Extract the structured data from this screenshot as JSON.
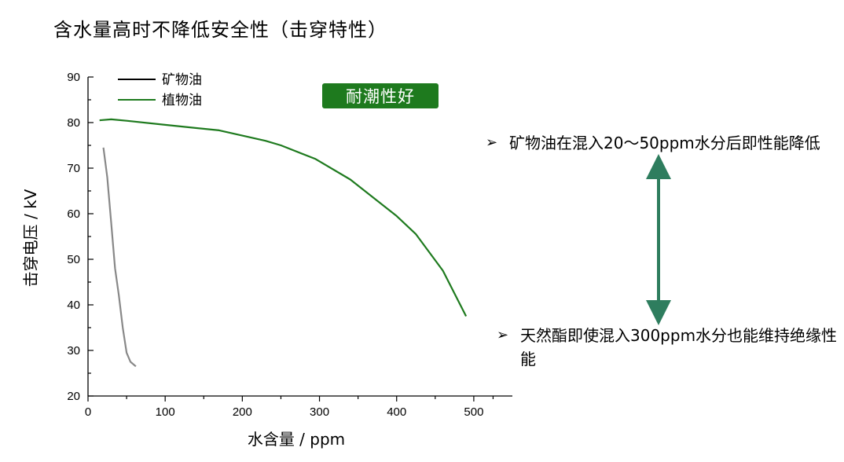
{
  "title": "含水量高时不降低安全性（击穿特性）",
  "badge": "耐潮性好",
  "notes": [
    {
      "bullet": "➢",
      "text": "矿物油在混入20～50ppm水分后即性能降低"
    },
    {
      "bullet": "➢",
      "text": "天然酯即使混入300ppm水分也能维持绝缘性能"
    }
  ],
  "arrow": {
    "color": "#2e7d5e",
    "icon": "double-headed-arrow-icon"
  },
  "chart_data": {
    "type": "line",
    "xlabel": "水含量 / ppm",
    "ylabel": "击穿电压 / kV",
    "xlim": [
      0,
      550
    ],
    "ylim": [
      20,
      90
    ],
    "x_ticks": [
      0,
      100,
      200,
      300,
      400,
      500
    ],
    "y_ticks": [
      20,
      30,
      40,
      50,
      60,
      70,
      80,
      90
    ],
    "legend_position": "top-left",
    "grid": false,
    "series": [
      {
        "name": "矿物油",
        "color": "#000000",
        "line_color": "#888888",
        "x": [
          20,
          25,
          30,
          35,
          40,
          45,
          50,
          55,
          62
        ],
        "y": [
          74.5,
          68,
          58,
          48,
          42,
          35,
          29.5,
          27.5,
          26.5
        ]
      },
      {
        "name": "植物油",
        "color": "#1e7a1e",
        "line_color": "#1e7a1e",
        "x": [
          15,
          30,
          50,
          100,
          170,
          230,
          250,
          295,
          340,
          400,
          425,
          460,
          490
        ],
        "y": [
          80.5,
          80.7,
          80.4,
          79.5,
          78.3,
          76.0,
          75.0,
          72.0,
          67.5,
          59.5,
          55.5,
          47.5,
          37.5
        ]
      }
    ]
  }
}
